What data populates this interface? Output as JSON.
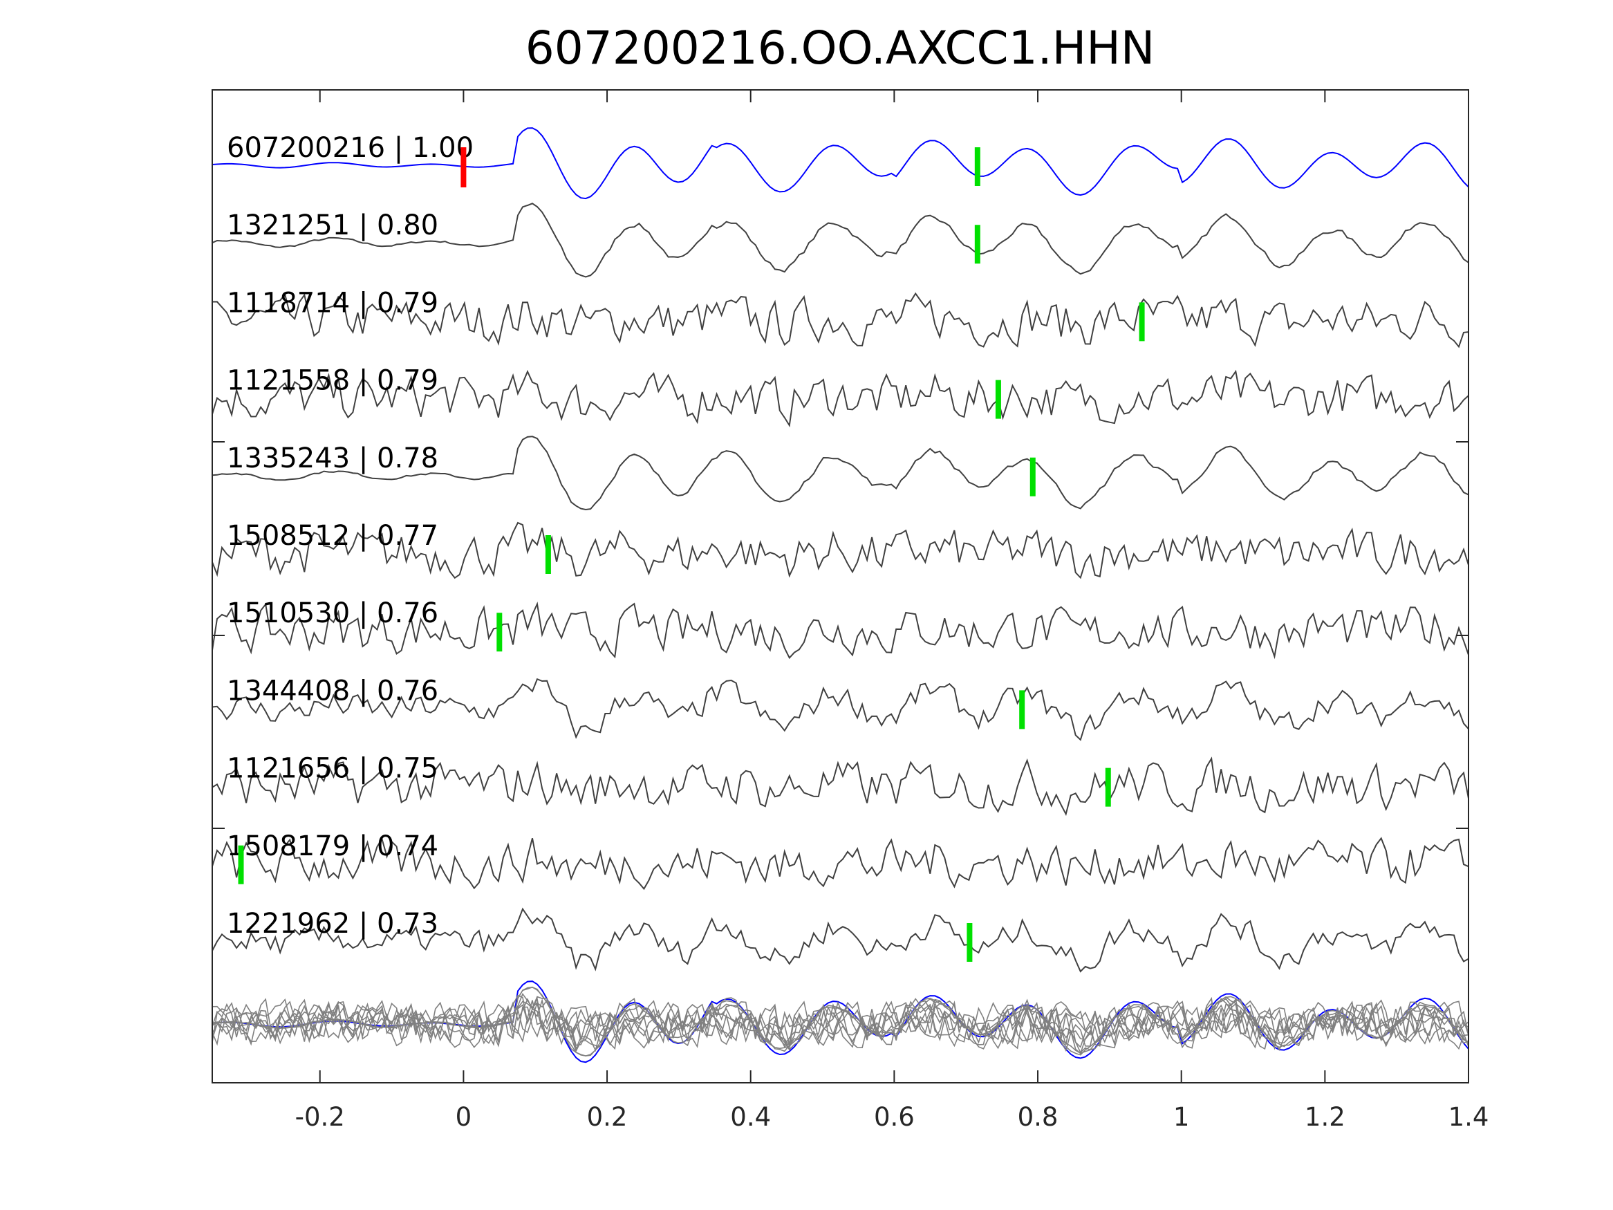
{
  "chart_data": {
    "type": "line",
    "title": "607200216.OO.AXCC1.HHN",
    "xlabel": "",
    "ylabel": "",
    "xlim": [
      -0.35,
      1.4
    ],
    "xticks": [
      -0.2,
      0,
      0.2,
      0.4,
      0.6,
      0.8,
      1,
      1.2,
      1.4
    ],
    "xtick_labels": [
      "-0.2",
      "0",
      "0.2",
      "0.4",
      "0.6",
      "0.8",
      "1",
      "1.2",
      "1.4"
    ],
    "grid": false,
    "template": {
      "label": "607200216 | 1.00",
      "pick": 0.716,
      "reference_pick": 0,
      "color": "#0000ff"
    },
    "traces": [
      {
        "label": "1321251 | 0.80",
        "pick": 0.716,
        "similarity": "template"
      },
      {
        "label": "1118714 | 0.79",
        "pick": 0.945,
        "similarity": "noisy"
      },
      {
        "label": "1121558 | 0.79",
        "pick": 0.745,
        "similarity": "noisy"
      },
      {
        "label": "1335243 | 0.78",
        "pick": 0.793,
        "similarity": "template"
      },
      {
        "label": "1508512 | 0.77",
        "pick": 0.118,
        "similarity": "noisy"
      },
      {
        "label": "1510530 | 0.76",
        "pick": 0.05,
        "similarity": "noisy"
      },
      {
        "label": "1344408 | 0.76",
        "pick": 0.778,
        "similarity": "mixed"
      },
      {
        "label": "1121656 | 0.75",
        "pick": 0.898,
        "similarity": "noisy"
      },
      {
        "label": "1508179 | 0.74",
        "pick": -0.31,
        "similarity": "noisy"
      },
      {
        "label": "1221962 | 0.73",
        "pick": 0.705,
        "similarity": "mixed"
      }
    ],
    "colors": {
      "template": "#0000ff",
      "trace": "#404040",
      "stack": "#808080",
      "pick": "#00e000",
      "reference_pick": "#ff0000"
    }
  }
}
